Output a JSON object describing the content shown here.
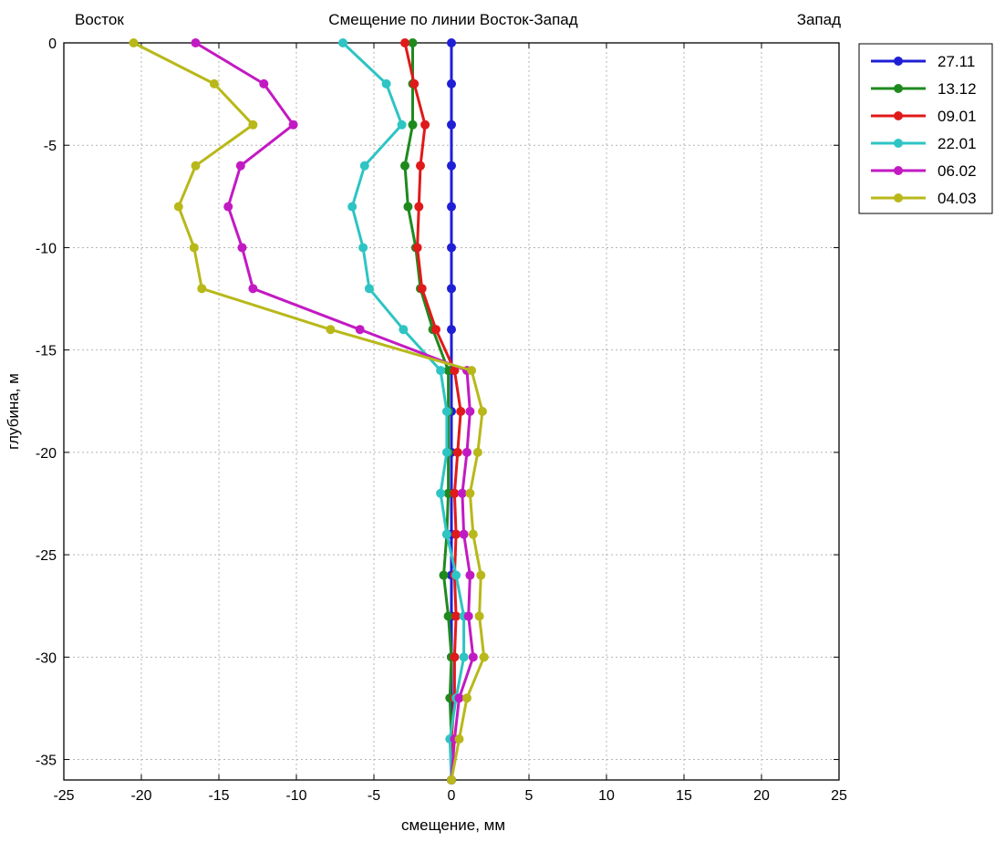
{
  "header": {
    "left": "Восток",
    "center": "Смещение по линии Восток-Запад",
    "right": "Запад"
  },
  "chart_data": {
    "type": "line",
    "title": "Смещение по линии Восток-Запад",
    "xlabel": "смещение, мм",
    "ylabel": "глубина, м",
    "xlim": [
      -25,
      25
    ],
    "ylim": [
      -36,
      0
    ],
    "grid": true,
    "legend_position": "top-right-outside",
    "x_ticks": [
      -25,
      -20,
      -15,
      -10,
      -5,
      0,
      5,
      10,
      15,
      20,
      25
    ],
    "y_ticks": [
      0,
      -5,
      -10,
      -15,
      -20,
      -25,
      -30,
      -35
    ],
    "series": [
      {
        "name": "27.11",
        "color": "#1f1fd6",
        "depth": [
          0,
          -2,
          -4,
          -6,
          -8,
          -10,
          -12,
          -14,
          -16,
          -18,
          -20,
          -22,
          -24,
          -26,
          -28,
          -30,
          -32,
          -34,
          -36
        ],
        "x": [
          0,
          0,
          0,
          0,
          0,
          0,
          0,
          0,
          0,
          0,
          0,
          0,
          0,
          0,
          0,
          0,
          0,
          0,
          0
        ]
      },
      {
        "name": "13.12",
        "color": "#1e8a1e",
        "depth": [
          0,
          -2,
          -4,
          -6,
          -8,
          -10,
          -12,
          -14,
          -16,
          -18,
          -20,
          -22,
          -24,
          -26,
          -28,
          -30,
          -32,
          -34,
          -36
        ],
        "x": [
          -2.5,
          -2.5,
          -2.5,
          -3,
          -2.8,
          -2.3,
          -2,
          -1.2,
          -0.2,
          -0.2,
          -0.2,
          -0.2,
          -0.3,
          -0.5,
          -0.2,
          0,
          -0.1,
          0,
          0
        ]
      },
      {
        "name": "09.01",
        "color": "#e01a1a",
        "depth": [
          0,
          -2,
          -4,
          -6,
          -8,
          -10,
          -12,
          -14,
          -16,
          -18,
          -20,
          -22,
          -24,
          -26,
          -28,
          -30,
          -32,
          -34,
          -36
        ],
        "x": [
          -3,
          -2.4,
          -1.7,
          -2,
          -2.1,
          -2.2,
          -1.9,
          -1,
          0.2,
          0.6,
          0.4,
          0.2,
          0.3,
          0.2,
          0.3,
          0.2,
          0.2,
          0,
          0
        ]
      },
      {
        "name": "22.01",
        "color": "#2ec4c4",
        "depth": [
          0,
          -2,
          -4,
          -6,
          -8,
          -10,
          -12,
          -14,
          -16,
          -18,
          -20,
          -22,
          -24,
          -26,
          -28,
          -30,
          -32,
          -34,
          -36
        ],
        "x": [
          -7,
          -4.2,
          -3.2,
          -5.6,
          -6.4,
          -5.7,
          -5.3,
          -3.1,
          -0.7,
          -0.3,
          -0.3,
          -0.7,
          -0.3,
          0.3,
          0.8,
          0.8,
          0.3,
          -0.1,
          0
        ]
      },
      {
        "name": "06.02",
        "color": "#c21ac2",
        "depth": [
          0,
          -2,
          -4,
          -6,
          -8,
          -10,
          -12,
          -14,
          -16,
          -18,
          -20,
          -22,
          -24,
          -26,
          -28,
          -30,
          -32,
          -34,
          -36
        ],
        "x": [
          -16.5,
          -12.1,
          -10.2,
          -13.6,
          -14.4,
          -13.5,
          -12.8,
          -5.9,
          1,
          1.2,
          1,
          0.7,
          0.8,
          1.2,
          1.1,
          1.4,
          0.5,
          0.2,
          0
        ]
      },
      {
        "name": "04.03",
        "color": "#b8b81a",
        "depth": [
          0,
          -2,
          -4,
          -6,
          -8,
          -10,
          -12,
          -14,
          -16,
          -18,
          -20,
          -22,
          -24,
          -26,
          -28,
          -30,
          -32,
          -34,
          -36
        ],
        "x": [
          -20.5,
          -15.3,
          -12.8,
          -16.5,
          -17.6,
          -16.6,
          -16.1,
          -7.8,
          1.3,
          2,
          1.7,
          1.2,
          1.4,
          1.9,
          1.8,
          2.1,
          1,
          0.5,
          0
        ]
      }
    ]
  }
}
